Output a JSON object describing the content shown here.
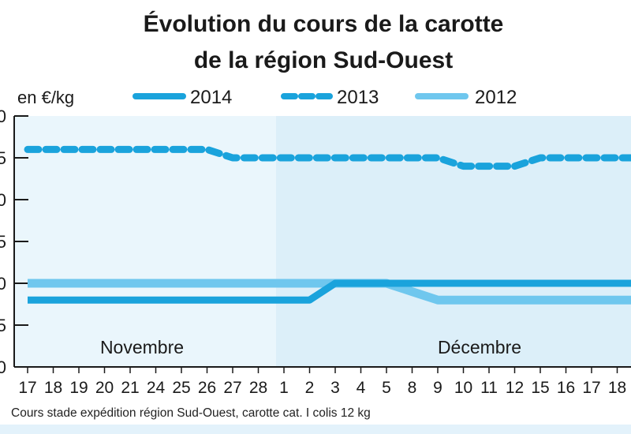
{
  "chart_data": {
    "type": "line",
    "title_line1": "Évolution du cours de la carotte",
    "title_line2": "de la région Sud-Ouest",
    "unit_label": "en €/kg",
    "categories": [
      "17",
      "18",
      "19",
      "20",
      "21",
      "24",
      "25",
      "26",
      "27",
      "28",
      "1",
      "2",
      "3",
      "4",
      "5",
      "8",
      "9",
      "10",
      "11",
      "12",
      "15",
      "16",
      "17",
      "18"
    ],
    "months": [
      {
        "label": "Novembre",
        "start_index": 0,
        "end_index": 9
      },
      {
        "label": "Décembre",
        "start_index": 10,
        "end_index": 23
      }
    ],
    "series": [
      {
        "name": "2014",
        "style": "solid",
        "color": "#1aa3dc",
        "values": [
          0.38,
          0.38,
          0.38,
          0.38,
          0.38,
          0.38,
          0.38,
          0.38,
          0.38,
          0.38,
          0.38,
          0.38,
          0.4,
          0.4,
          0.4,
          0.4,
          0.4,
          0.4,
          0.4,
          0.4,
          0.4,
          0.4,
          0.4,
          0.4
        ]
      },
      {
        "name": "2013",
        "style": "dashed",
        "color": "#1aa3dc",
        "values": [
          0.56,
          0.56,
          0.56,
          0.56,
          0.56,
          0.56,
          0.56,
          0.56,
          0.55,
          0.55,
          0.55,
          0.55,
          0.55,
          0.55,
          0.55,
          0.55,
          0.55,
          0.54,
          0.54,
          0.54,
          0.55,
          0.55,
          0.55,
          0.55
        ]
      },
      {
        "name": "2012",
        "style": "solid",
        "color": "#6fc7ee",
        "values": [
          0.4,
          0.4,
          0.4,
          0.4,
          0.4,
          0.4,
          0.4,
          0.4,
          0.4,
          0.4,
          0.4,
          0.4,
          0.4,
          0.4,
          0.4,
          0.39,
          0.38,
          0.38,
          0.38,
          0.38,
          0.38,
          0.38,
          0.38,
          0.38
        ]
      }
    ],
    "ylim": [
      0.3,
      0.6
    ],
    "y_step": 0.05,
    "grid": false,
    "legend_position": "top",
    "source": "Cours stade expédition région Sud-Ouest, carotte cat. I colis 12 kg",
    "colors": {
      "plot_bg_left": "#eaf6fc",
      "plot_bg_right": "#dceff9",
      "page_bottom_band": "#e3f2fb"
    }
  }
}
